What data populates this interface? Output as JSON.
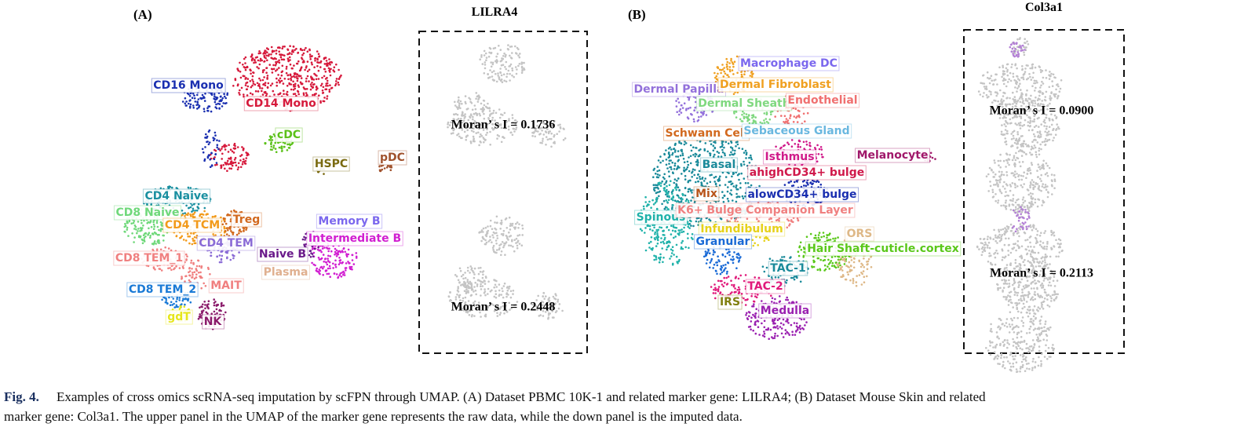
{
  "panel_a": {
    "label": "(A)",
    "marker_gene": "LILRA4",
    "raw_moran": "Moran’ s I = 0.1736",
    "imputed_moran": "Moran’ s I = 0.2448",
    "clusters": [
      "CD16 Mono",
      "CD14 Mono",
      "cDC",
      "HSPC",
      "pDC",
      "CD4 Naive",
      "CD8 Naive",
      "Treg",
      "CD4 TCM",
      "Memory B",
      "Intermediate B",
      "CD4 TEM",
      "Naive B",
      "CD8 TEM_1",
      "Plasma",
      "MAIT",
      "CD8 TEM_2",
      "gdT",
      "NK"
    ]
  },
  "panel_b": {
    "label": "(B)",
    "marker_gene": "Col3a1",
    "raw_moran": "Moran’ s I = 0.0900",
    "imputed_moran": "Moran’ s I = 0.2113",
    "clusters": [
      "Macrophage DC",
      "Dermal Papilla",
      "Dermal Fibroblast",
      "Dermal Sheath",
      "Endothelial",
      "Schwann Cell",
      "Sebaceous Gland",
      "Melanocyte",
      "Isthmus",
      "Basal",
      "ahighCD34+ bulge",
      "Mix",
      "alowCD34+ bulge",
      "Spinous",
      "K6+ Bulge Companion Layer",
      "ORS",
      "Infundibulum",
      "Granular",
      "Hair Shaft-cuticle.cortex",
      "TAC-1",
      "TAC-2",
      "IRS",
      "Medulla"
    ]
  },
  "caption": {
    "label": "Fig. 4.",
    "lines": [
      "Examples of cross omics scRNA-seq imputation by scFPN through UMAP. (A) Dataset PBMC 10K-1 and related marker gene: LILRA4; (B) Dataset Mouse Skin and related",
      "marker gene: Col3a1. The upper panel in the UMAP of the marker gene represents the raw data, while the down panel is the imputed data."
    ]
  }
}
